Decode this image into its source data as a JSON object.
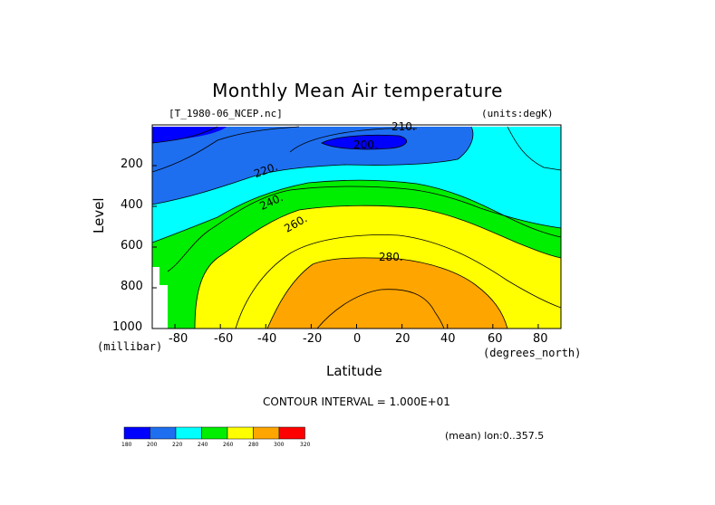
{
  "chart_data": {
    "type": "heatmap",
    "title": "Monthly Mean Air temperature",
    "subtitle_left": "[T_1980-06_NCEP.nc]",
    "subtitle_right": "(units:degK)",
    "xlabel": "Latitude",
    "x_units": "(degrees_north)",
    "ylabel": "Level",
    "y_units": "(millibar)",
    "xlim": [
      -90,
      90
    ],
    "ylim": [
      1000,
      0
    ],
    "x_ticks": [
      "-80",
      "-60",
      "-40",
      "-20",
      "0",
      "20",
      "40",
      "60",
      "80"
    ],
    "y_ticks": [
      "200",
      "400",
      "600",
      "800",
      "1000"
    ],
    "contour_interval_text": "CONTOUR INTERVAL = 1.000E+01",
    "contour_labels": [
      "210.",
      "200.",
      "220.",
      "240.",
      "260.",
      "280."
    ],
    "footer_text": "(mean) lon:0..357.5",
    "colorbar": {
      "labels": [
        "180",
        "200",
        "220",
        "240",
        "260",
        "280",
        "300",
        "320"
      ],
      "colors": [
        "#0000ff",
        "#1e6ef0",
        "#00ffff",
        "#00ee00",
        "#ffff00",
        "#ffa500",
        "#ff0000"
      ]
    },
    "grid": false
  }
}
